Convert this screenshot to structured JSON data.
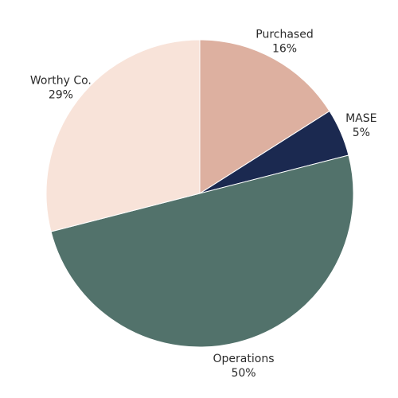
{
  "chart_data": {
    "type": "pie",
    "start_angle_deg": 0,
    "direction": "clockwise",
    "slices": [
      {
        "label": "Purchased",
        "pct_label": "16%",
        "value": 16,
        "color": "#ddb0a0"
      },
      {
        "label": "MASE",
        "pct_label": "5%",
        "value": 5,
        "color": "#1b2950"
      },
      {
        "label": "Operations",
        "pct_label": "50%",
        "value": 50,
        "color": "#52726b"
      },
      {
        "label": "Worthy Co.",
        "pct_label": "29%",
        "value": 29,
        "color": "#f8e3d9"
      }
    ]
  }
}
